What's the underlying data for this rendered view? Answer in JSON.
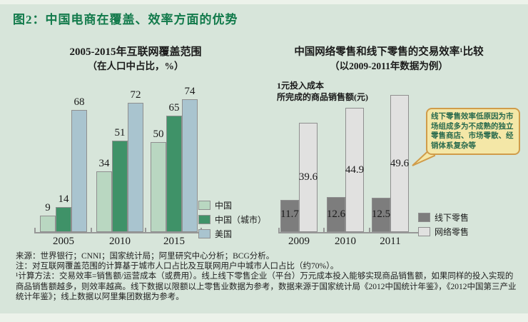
{
  "page": {
    "title": "图2：中国电商在覆盖、效率方面的优势"
  },
  "colors": {
    "background": "#d7e5da",
    "title_green": "#127a4b",
    "bar_china": "#b9d7c1",
    "bar_china_urban": "#3f9268",
    "bar_usa": "#a9c4cf",
    "bar_offline": "#7d7d7d",
    "bar_online": "#e1e1e0",
    "axis_gray": "#979797",
    "callout_fill": "#f4e7a7",
    "callout_border": "#d09c4a"
  },
  "chart_data": [
    {
      "type": "bar",
      "title": "2005-2015年互联网覆盖范围",
      "subtitle": "（在人口中占比，%）",
      "categories": [
        "2005",
        "2010",
        "2015"
      ],
      "series": [
        {
          "key": "china",
          "name": "中国",
          "values": [
            9,
            34,
            50
          ],
          "color": "#b9d7c1",
          "label_pos": "above"
        },
        {
          "key": "china-urban",
          "name": "中国（城市）",
          "values": [
            14,
            51,
            65
          ],
          "color": "#3f9268",
          "label_pos": "above"
        },
        {
          "key": "usa",
          "name": "美国",
          "values": [
            68,
            72,
            74
          ],
          "color": "#a9c4cf",
          "label_pos": "above"
        }
      ],
      "ylim": [
        0,
        78
      ],
      "grid": false,
      "legend_position": "bottom-right"
    },
    {
      "type": "bar",
      "title": "中国网络零售和线下零售的交易效率¹比较",
      "subtitle": "（以2009-2011年数据为例）",
      "ylabel_line1": "1元投入成本",
      "ylabel_line2": "所完成的商品销售额(元)",
      "categories": [
        "2009",
        "2010",
        "2011"
      ],
      "series": [
        {
          "key": "offline-retail",
          "name": "线下零售",
          "values": [
            11.7,
            12.6,
            12.5
          ],
          "color": "#7d7d7d",
          "label_pos": "inside-bottom"
        },
        {
          "key": "online-retail",
          "name": "网络零售",
          "values": [
            39.6,
            44.9,
            49.6
          ],
          "color": "#e1e1e0",
          "label_pos": "middle"
        }
      ],
      "ylim": [
        0,
        52
      ],
      "grid": false,
      "legend_position": "bottom-right"
    }
  ],
  "callout": {
    "text": "线下零售效率低原因为市场组成多为不成熟的独立零售商店、市场零散、经销体系复杂等"
  },
  "footnotes": {
    "source": "来源：世界银行；CNNI；国家统计局；阿里研究中心分析；BCG分析。",
    "note": "注：对互联网覆盖范围的计算基于城市人口占比及互联网用户中城市人口占比（约70%）。",
    "method": "¹计算方法：交易效率=销售额/运营成本（或费用）。线上线下零售企业（平台）万元成本投入能够实现商品销售额，如果同样的投入实现的商品销售额越多，则效率越高。线下数据以限额以上零售业数据为参考，数据来源于国家统计局《2012中国统计年鉴》，《2012中国第三产业统计年鉴》；线上数据以阿里集团数据为参考。"
  }
}
